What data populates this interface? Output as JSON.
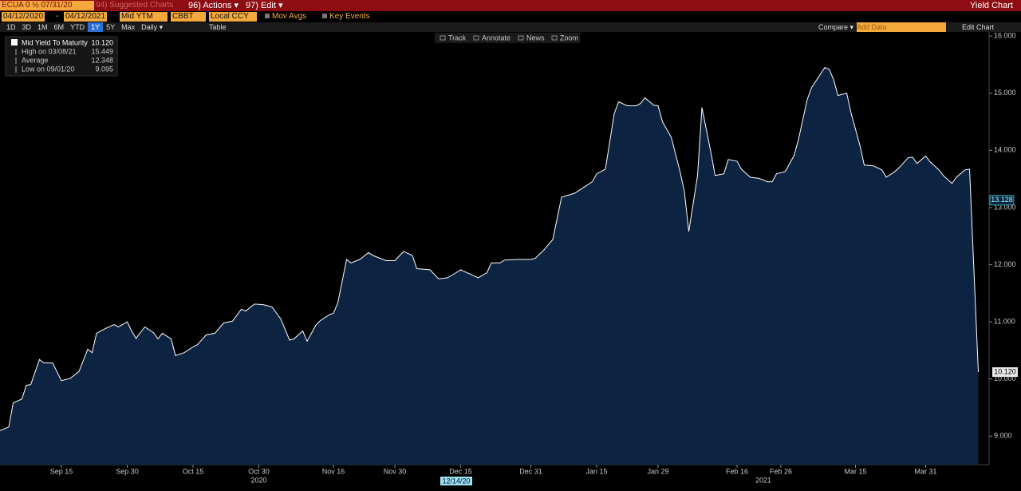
{
  "header": {
    "ticker": "ECUA 0 ½ 07/31/20",
    "suggested": "94) Suggested Charts",
    "actions": "96) Actions ▾",
    "edit": "97) Edit ▾",
    "title": "Yield Chart"
  },
  "controls": {
    "start": "04/12/2020",
    "dash": "-",
    "end": "04/12/2021",
    "field": "Mid YTM",
    "source": "CBBT",
    "currency": "Local CCY",
    "mov_avgs": "Mov Avgs",
    "key_events": "Key Events",
    "periods": [
      "1D",
      "3D",
      "1M",
      "6M",
      "YTD",
      "1Y",
      "5Y",
      "Max"
    ],
    "active_period": 5,
    "frequency": "Daily ▾",
    "table": "Table",
    "compare": "Compare ▾",
    "add_data": "Add Data",
    "edit_chart": "Edit Chart"
  },
  "tools": [
    "Track",
    "Annotate",
    "News",
    "Zoom"
  ],
  "chart_data": {
    "type": "area",
    "x": [
      "2020-09-01",
      "2020-09-03",
      "2020-09-04",
      "2020-09-06",
      "2020-09-07",
      "2020-09-08",
      "2020-09-10",
      "2020-09-11",
      "2020-09-13",
      "2020-09-15",
      "2020-09-17",
      "2020-09-19",
      "2020-09-21",
      "2020-09-22",
      "2020-09-23",
      "2020-09-25",
      "2020-09-27",
      "2020-09-28",
      "2020-09-30",
      "2020-10-01",
      "2020-10-02",
      "2020-10-04",
      "2020-10-06",
      "2020-10-07",
      "2020-10-08",
      "2020-10-10",
      "2020-10-11",
      "2020-10-13",
      "2020-10-15",
      "2020-10-16",
      "2020-10-18",
      "2020-10-20",
      "2020-10-22",
      "2020-10-24",
      "2020-10-26",
      "2020-10-27",
      "2020-10-29",
      "2020-10-31",
      "2020-11-02",
      "2020-11-04",
      "2020-11-06",
      "2020-11-07",
      "2020-11-09",
      "2020-11-10",
      "2020-11-12",
      "2020-11-13",
      "2020-11-15",
      "2020-11-16",
      "2020-11-17",
      "2020-11-19",
      "2020-11-20",
      "2020-11-22",
      "2020-11-24",
      "2020-11-25",
      "2020-11-28",
      "2020-11-30",
      "2020-12-02",
      "2020-12-04",
      "2020-12-05",
      "2020-12-08",
      "2020-12-10",
      "2020-12-12",
      "2020-12-14",
      "2020-12-15",
      "2020-12-17",
      "2020-12-19",
      "2020-12-21",
      "2020-12-22",
      "2020-12-24",
      "2020-12-25",
      "2020-12-28",
      "2020-12-31",
      "2021-01-01",
      "2021-01-03",
      "2021-01-05",
      "2021-01-07",
      "2021-01-10",
      "2021-01-12",
      "2021-01-14",
      "2021-01-15",
      "2021-01-17",
      "2021-01-19",
      "2021-01-20",
      "2021-01-22",
      "2021-01-24",
      "2021-01-25",
      "2021-01-26",
      "2021-01-28",
      "2021-01-29",
      "2021-01-30",
      "2021-02-01",
      "2021-02-03",
      "2021-02-04",
      "2021-02-05",
      "2021-02-07",
      "2021-02-08",
      "2021-02-10",
      "2021-02-11",
      "2021-02-13",
      "2021-02-14",
      "2021-02-16",
      "2021-02-17",
      "2021-02-19",
      "2021-02-21",
      "2021-02-23",
      "2021-02-24",
      "2021-02-25",
      "2021-02-27",
      "2021-03-01",
      "2021-03-02",
      "2021-03-04",
      "2021-03-05",
      "2021-03-08",
      "2021-03-09",
      "2021-03-10",
      "2021-03-11",
      "2021-03-13",
      "2021-03-14",
      "2021-03-16",
      "2021-03-17",
      "2021-03-19",
      "2021-03-21",
      "2021-03-22",
      "2021-03-24",
      "2021-03-25",
      "2021-03-27",
      "2021-03-28",
      "2021-03-29",
      "2021-03-31",
      "2021-04-01",
      "2021-04-03",
      "2021-04-04",
      "2021-04-06",
      "2021-04-07",
      "2021-04-09",
      "2021-04-10",
      "2021-04-12"
    ],
    "series": [
      {
        "name": "Mid Yield To Maturity",
        "color": "#ffffff",
        "fill": "#0c2342",
        "values": [
          9.095,
          9.16,
          9.58,
          9.65,
          9.89,
          9.9,
          10.34,
          10.28,
          10.28,
          9.97,
          10.01,
          10.13,
          10.52,
          10.46,
          10.8,
          10.88,
          10.95,
          10.91,
          11.0,
          10.84,
          10.71,
          10.91,
          10.81,
          10.7,
          10.8,
          10.7,
          10.41,
          10.46,
          10.56,
          10.6,
          10.77,
          10.8,
          10.98,
          11.01,
          11.22,
          11.19,
          11.31,
          11.3,
          11.26,
          11.05,
          10.68,
          10.7,
          10.84,
          10.66,
          10.94,
          11.02,
          11.12,
          11.15,
          11.33,
          12.09,
          12.03,
          12.09,
          12.21,
          12.16,
          12.07,
          12.07,
          12.23,
          12.16,
          11.93,
          11.91,
          11.75,
          11.77,
          11.86,
          11.91,
          11.84,
          11.77,
          11.86,
          12.03,
          12.03,
          12.08,
          12.09,
          12.09,
          12.11,
          12.26,
          12.44,
          13.18,
          13.25,
          13.35,
          13.45,
          13.59,
          13.67,
          14.64,
          14.85,
          14.78,
          14.78,
          14.82,
          14.92,
          14.79,
          14.78,
          14.5,
          14.23,
          13.63,
          13.28,
          12.58,
          13.56,
          14.75,
          13.98,
          13.56,
          13.59,
          13.84,
          13.81,
          13.67,
          13.53,
          13.51,
          13.45,
          13.45,
          13.59,
          13.63,
          13.91,
          14.19,
          14.89,
          15.1,
          15.449,
          15.42,
          15.24,
          14.96,
          15.0,
          14.65,
          14.09,
          13.74,
          13.73,
          13.66,
          13.53,
          13.63,
          13.7,
          13.87,
          13.88,
          13.77,
          13.9,
          13.8,
          13.66,
          13.56,
          13.42,
          13.53,
          13.66,
          13.67,
          10.12
        ],
        "current": {
          "value": 10.12,
          "label": "10.120"
        }
      }
    ],
    "stats": [
      {
        "name": "High on 03/08/21",
        "value": 15.449
      },
      {
        "name": "Average",
        "value": 12.348
      },
      {
        "name": "Low on 09/01/20",
        "value": 9.095
      }
    ],
    "marker": {
      "value": 13.128,
      "label": "13.128"
    },
    "cursor_label": "12/14/20",
    "xlim": [
      "2020-09-01",
      "2021-04-13"
    ],
    "xticks": [
      {
        "value": "2020-09-15",
        "label": "Sep 15"
      },
      {
        "value": "2020-09-30",
        "label": "Sep 30"
      },
      {
        "value": "2020-10-15",
        "label": "Oct 15"
      },
      {
        "value": "2020-10-30",
        "label": "Oct 30"
      },
      {
        "value": "2020-11-16",
        "label": "Nov 16"
      },
      {
        "value": "2020-11-30",
        "label": "Nov 30"
      },
      {
        "value": "2020-12-15",
        "label": "Dec 15"
      },
      {
        "value": "2020-12-31",
        "label": "Dec 31"
      },
      {
        "value": "2021-01-15",
        "label": "Jan 15"
      },
      {
        "value": "2021-01-29",
        "label": "Jan 29"
      },
      {
        "value": "2021-02-16",
        "label": "Feb 16"
      },
      {
        "value": "2021-02-26",
        "label": "Feb 26"
      },
      {
        "value": "2021-03-15",
        "label": "Mar 15"
      },
      {
        "value": "2021-03-31",
        "label": "Mar 31"
      }
    ],
    "year_labels": [
      {
        "value": "2020-10-30",
        "label": "2020"
      },
      {
        "value": "2021-02-22",
        "label": "2021"
      }
    ],
    "ylim": [
      8.5,
      16.1
    ],
    "yticks": [
      {
        "value": 9,
        "label": "9.000"
      },
      {
        "value": 10,
        "label": "10.000"
      },
      {
        "value": 11,
        "label": "11.000"
      },
      {
        "value": 12,
        "label": "12.000"
      },
      {
        "value": 13,
        "label": "13.000"
      },
      {
        "value": 14,
        "label": "14.000"
      },
      {
        "value": 15,
        "label": "15.000"
      },
      {
        "value": 16,
        "label": "16.000"
      }
    ]
  }
}
